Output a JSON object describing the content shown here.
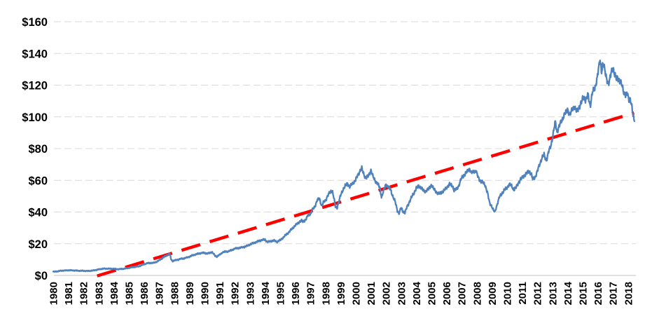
{
  "chart_data": {
    "type": "line",
    "title": "",
    "xlabel": "",
    "ylabel": "",
    "legend": "none",
    "background": "#FFFFFF",
    "grid": "horizontal-dashed",
    "y_axis": {
      "min": 0,
      "max": 160,
      "step": 20,
      "tick_labels": [
        "$0",
        "$20",
        "$40",
        "$60",
        "$80",
        "$100",
        "$120",
        "$140",
        "$160"
      ],
      "gridline_values": [
        0,
        20,
        40,
        60,
        80,
        100,
        120,
        140,
        160
      ]
    },
    "x_axis": {
      "tick_labels": [
        "1980",
        "1981",
        "1982",
        "1983",
        "1984",
        "1985",
        "1986",
        "1987",
        "1988",
        "1989",
        "1990",
        "1991",
        "1992",
        "1993",
        "1994",
        "1995",
        "1996",
        "1997",
        "1998",
        "1999",
        "2000",
        "2001",
        "2002",
        "2003",
        "2004",
        "2005",
        "2006",
        "2007",
        "2008",
        "2009",
        "2010",
        "2011",
        "2012",
        "2013",
        "2014",
        "2015",
        "2016",
        "2017",
        "2018"
      ],
      "label_rotation_deg": -90
    },
    "colors": {
      "price_series": "#4F81BD",
      "trend_line": "#FF0000",
      "gridline": "#D9D9D9",
      "axis_line": "#C0C0C0",
      "tick_text": "#000000"
    },
    "series": [
      {
        "name": "price",
        "style": "solid-noisy",
        "color": "#4F81BD",
        "points": [
          [
            1980.0,
            2.3
          ],
          [
            1980.2,
            2.5
          ],
          [
            1980.4,
            2.8
          ],
          [
            1980.6,
            3.0
          ],
          [
            1980.8,
            3.1
          ],
          [
            1981.0,
            3.3
          ],
          [
            1981.2,
            3.2
          ],
          [
            1981.4,
            3.1
          ],
          [
            1981.6,
            3.0
          ],
          [
            1981.8,
            2.9
          ],
          [
            1982.0,
            2.9
          ],
          [
            1982.2,
            2.8
          ],
          [
            1982.4,
            2.9
          ],
          [
            1982.6,
            3.0
          ],
          [
            1982.8,
            3.4
          ],
          [
            1983.0,
            3.8
          ],
          [
            1983.2,
            4.1
          ],
          [
            1983.4,
            4.3
          ],
          [
            1983.6,
            4.3
          ],
          [
            1983.8,
            4.2
          ],
          [
            1984.0,
            4.2
          ],
          [
            1984.2,
            4.0
          ],
          [
            1984.4,
            4.0
          ],
          [
            1984.6,
            4.1
          ],
          [
            1984.8,
            4.4
          ],
          [
            1985.0,
            4.8
          ],
          [
            1985.2,
            5.1
          ],
          [
            1985.4,
            5.4
          ],
          [
            1985.6,
            5.7
          ],
          [
            1985.8,
            6.2
          ],
          [
            1986.0,
            7.0
          ],
          [
            1986.2,
            7.7
          ],
          [
            1986.4,
            7.9
          ],
          [
            1986.6,
            7.8
          ],
          [
            1986.8,
            8.5
          ],
          [
            1987.0,
            9.5
          ],
          [
            1987.2,
            10.8
          ],
          [
            1987.4,
            12.0
          ],
          [
            1987.6,
            13.2
          ],
          [
            1987.7,
            13.6
          ],
          [
            1987.8,
            10.0
          ],
          [
            1987.9,
            9.0
          ],
          [
            1988.0,
            9.4
          ],
          [
            1988.2,
            9.9
          ],
          [
            1988.4,
            10.4
          ],
          [
            1988.6,
            10.6
          ],
          [
            1988.8,
            11.2
          ],
          [
            1989.0,
            11.8
          ],
          [
            1989.2,
            12.6
          ],
          [
            1989.4,
            13.2
          ],
          [
            1989.6,
            13.8
          ],
          [
            1989.8,
            14.1
          ],
          [
            1990.0,
            14.2
          ],
          [
            1990.2,
            13.8
          ],
          [
            1990.4,
            14.4
          ],
          [
            1990.5,
            14.7
          ],
          [
            1990.7,
            12.4
          ],
          [
            1990.8,
            11.9
          ],
          [
            1991.0,
            13.0
          ],
          [
            1991.2,
            14.6
          ],
          [
            1991.4,
            15.0
          ],
          [
            1991.6,
            15.3
          ],
          [
            1991.8,
            15.9
          ],
          [
            1992.0,
            16.9
          ],
          [
            1992.2,
            17.3
          ],
          [
            1992.4,
            17.5
          ],
          [
            1992.6,
            17.9
          ],
          [
            1992.8,
            18.6
          ],
          [
            1993.0,
            19.5
          ],
          [
            1993.2,
            20.2
          ],
          [
            1993.4,
            21.0
          ],
          [
            1993.6,
            21.8
          ],
          [
            1993.8,
            22.3
          ],
          [
            1994.0,
            22.6
          ],
          [
            1994.15,
            21.2
          ],
          [
            1994.4,
            21.6
          ],
          [
            1994.6,
            21.9
          ],
          [
            1994.8,
            21.3
          ],
          [
            1995.0,
            22.2
          ],
          [
            1995.2,
            23.8
          ],
          [
            1995.4,
            25.8
          ],
          [
            1995.6,
            27.5
          ],
          [
            1995.8,
            29.5
          ],
          [
            1996.0,
            31.5
          ],
          [
            1996.2,
            33.3
          ],
          [
            1996.4,
            34.6
          ],
          [
            1996.5,
            33.8
          ],
          [
            1996.7,
            35.2
          ],
          [
            1996.85,
            38.0
          ],
          [
            1997.0,
            38.8
          ],
          [
            1997.15,
            41.5
          ],
          [
            1997.3,
            43.5
          ],
          [
            1997.45,
            47.5
          ],
          [
            1997.6,
            48.5
          ],
          [
            1997.75,
            43.8
          ],
          [
            1997.9,
            46.5
          ],
          [
            1998.0,
            47.2
          ],
          [
            1998.15,
            50.5
          ],
          [
            1998.3,
            52.5
          ],
          [
            1998.45,
            53.5
          ],
          [
            1998.55,
            49.0
          ],
          [
            1998.65,
            43.5
          ],
          [
            1998.75,
            42.5
          ],
          [
            1998.9,
            47.0
          ],
          [
            1999.0,
            50.5
          ],
          [
            1999.15,
            54.0
          ],
          [
            1999.3,
            56.5
          ],
          [
            1999.45,
            58.0
          ],
          [
            1999.6,
            56.0
          ],
          [
            1999.75,
            57.5
          ],
          [
            1999.9,
            59.0
          ],
          [
            2000.0,
            60.5
          ],
          [
            2000.15,
            63.5
          ],
          [
            2000.3,
            66.5
          ],
          [
            2000.4,
            67.5
          ],
          [
            2000.5,
            64.5
          ],
          [
            2000.65,
            61.5
          ],
          [
            2000.8,
            62.5
          ],
          [
            2000.9,
            64.0
          ],
          [
            2001.0,
            66.5
          ],
          [
            2001.15,
            62.0
          ],
          [
            2001.3,
            59.5
          ],
          [
            2001.45,
            58.0
          ],
          [
            2001.6,
            55.0
          ],
          [
            2001.7,
            49.5
          ],
          [
            2001.85,
            53.5
          ],
          [
            2002.0,
            57.5
          ],
          [
            2002.15,
            56.0
          ],
          [
            2002.3,
            54.0
          ],
          [
            2002.45,
            50.0
          ],
          [
            2002.6,
            46.5
          ],
          [
            2002.75,
            41.0
          ],
          [
            2002.85,
            39.0
          ],
          [
            2003.0,
            42.5
          ],
          [
            2003.15,
            40.0
          ],
          [
            2003.25,
            39.5
          ],
          [
            2003.4,
            43.5
          ],
          [
            2003.55,
            46.5
          ],
          [
            2003.7,
            49.5
          ],
          [
            2003.85,
            52.0
          ],
          [
            2004.0,
            55.0
          ],
          [
            2004.15,
            56.5
          ],
          [
            2004.3,
            55.5
          ],
          [
            2004.45,
            53.5
          ],
          [
            2004.6,
            53.0
          ],
          [
            2004.8,
            54.5
          ],
          [
            2005.0,
            57.0
          ],
          [
            2005.15,
            54.5
          ],
          [
            2005.3,
            53.0
          ],
          [
            2005.45,
            51.5
          ],
          [
            2005.6,
            52.0
          ],
          [
            2005.8,
            53.0
          ],
          [
            2006.0,
            55.5
          ],
          [
            2006.2,
            57.5
          ],
          [
            2006.4,
            56.5
          ],
          [
            2006.5,
            53.5
          ],
          [
            2006.65,
            54.5
          ],
          [
            2006.8,
            56.5
          ],
          [
            2007.0,
            61.5
          ],
          [
            2007.2,
            63.5
          ],
          [
            2007.35,
            65.5
          ],
          [
            2007.5,
            67.5
          ],
          [
            2007.65,
            64.5
          ],
          [
            2007.8,
            65.5
          ],
          [
            2007.95,
            66.0
          ],
          [
            2008.1,
            61.5
          ],
          [
            2008.25,
            59.5
          ],
          [
            2008.4,
            58.5
          ],
          [
            2008.55,
            57.0
          ],
          [
            2008.7,
            52.5
          ],
          [
            2008.85,
            45.5
          ],
          [
            2009.0,
            43.5
          ],
          [
            2009.1,
            41.0
          ],
          [
            2009.2,
            40.0
          ],
          [
            2009.35,
            45.0
          ],
          [
            2009.5,
            49.5
          ],
          [
            2009.65,
            51.5
          ],
          [
            2009.8,
            53.5
          ],
          [
            2010.0,
            55.5
          ],
          [
            2010.15,
            57.5
          ],
          [
            2010.3,
            56.5
          ],
          [
            2010.45,
            54.0
          ],
          [
            2010.6,
            55.5
          ],
          [
            2010.75,
            58.5
          ],
          [
            2010.9,
            60.5
          ],
          [
            2011.0,
            61.5
          ],
          [
            2011.15,
            63.0
          ],
          [
            2011.3,
            64.5
          ],
          [
            2011.45,
            66.0
          ],
          [
            2011.6,
            64.0
          ],
          [
            2011.7,
            60.5
          ],
          [
            2011.85,
            62.0
          ],
          [
            2012.0,
            65.5
          ],
          [
            2012.15,
            70.0
          ],
          [
            2012.3,
            74.0
          ],
          [
            2012.45,
            76.0
          ],
          [
            2012.6,
            72.5
          ],
          [
            2012.75,
            78.0
          ],
          [
            2012.9,
            82.0
          ],
          [
            2013.0,
            86.5
          ],
          [
            2013.1,
            92.0
          ],
          [
            2013.2,
            97.0
          ],
          [
            2013.3,
            90.5
          ],
          [
            2013.45,
            94.0
          ],
          [
            2013.6,
            97.5
          ],
          [
            2013.75,
            100.5
          ],
          [
            2013.9,
            103.0
          ],
          [
            2014.0,
            105.0
          ],
          [
            2014.15,
            101.0
          ],
          [
            2014.3,
            104.5
          ],
          [
            2014.45,
            106.5
          ],
          [
            2014.6,
            103.5
          ],
          [
            2014.75,
            106.0
          ],
          [
            2014.9,
            108.5
          ],
          [
            2015.05,
            112.5
          ],
          [
            2015.2,
            110.5
          ],
          [
            2015.35,
            114.0
          ],
          [
            2015.5,
            107.0
          ],
          [
            2015.65,
            115.5
          ],
          [
            2015.8,
            118.0
          ],
          [
            2015.95,
            124.0
          ],
          [
            2016.05,
            130.0
          ],
          [
            2016.15,
            136.0
          ],
          [
            2016.25,
            129.0
          ],
          [
            2016.35,
            133.5
          ],
          [
            2016.5,
            128.0
          ],
          [
            2016.6,
            124.0
          ],
          [
            2016.7,
            120.0
          ],
          [
            2016.8,
            123.5
          ],
          [
            2016.9,
            129.5
          ],
          [
            2017.0,
            130.5
          ],
          [
            2017.1,
            126.5
          ],
          [
            2017.2,
            124.5
          ],
          [
            2017.3,
            125.5
          ],
          [
            2017.45,
            122.0
          ],
          [
            2017.6,
            120.5
          ],
          [
            2017.75,
            114.5
          ],
          [
            2017.85,
            113.0
          ],
          [
            2017.95,
            115.5
          ],
          [
            2018.05,
            111.5
          ],
          [
            2018.15,
            110.5
          ],
          [
            2018.25,
            106.0
          ],
          [
            2018.35,
            100.5
          ],
          [
            2018.42,
            98.0
          ]
        ]
      },
      {
        "name": "trend",
        "style": "dashed",
        "color": "#FF0000",
        "points": [
          [
            1982.9,
            -0.3
          ],
          [
            2018.4,
            102.5
          ]
        ]
      }
    ]
  }
}
